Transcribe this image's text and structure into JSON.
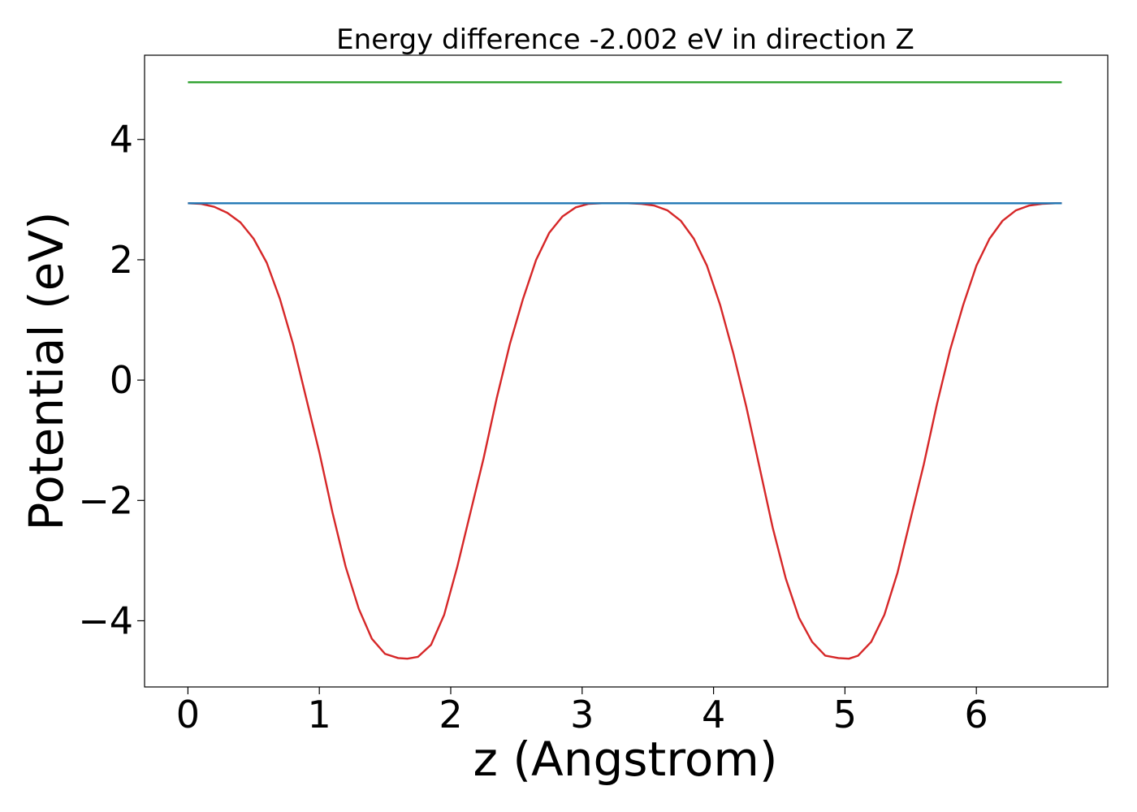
{
  "chart_data": {
    "type": "line",
    "title": "Energy difference -2.002 eV in direction Z",
    "xlabel": "z (Angstrom)",
    "ylabel": "Potential (eV)",
    "xlim": [
      -0.33,
      7.0
    ],
    "ylim": [
      -5.1,
      5.4
    ],
    "x_ticks": [
      0,
      1,
      2,
      3,
      4,
      5,
      6
    ],
    "y_ticks": [
      -4,
      -2,
      0,
      2,
      4
    ],
    "x_tick_labels": [
      "0",
      "1",
      "2",
      "3",
      "4",
      "5",
      "6"
    ],
    "y_tick_labels": [
      "−4",
      "−2",
      "0",
      "2",
      "4"
    ],
    "grid": false,
    "legend": "none",
    "series": [
      {
        "color": "#d62728",
        "x": [
          0.0,
          0.1,
          0.2,
          0.3,
          0.4,
          0.5,
          0.6,
          0.7,
          0.8,
          0.9,
          1.0,
          1.1,
          1.2,
          1.3,
          1.4,
          1.5,
          1.6,
          1.67,
          1.75,
          1.85,
          1.95,
          2.05,
          2.15,
          2.25,
          2.35,
          2.45,
          2.55,
          2.65,
          2.75,
          2.85,
          2.95,
          3.05,
          3.15,
          3.25,
          3.35,
          3.45,
          3.55,
          3.65,
          3.75,
          3.85,
          3.95,
          4.05,
          4.15,
          4.25,
          4.35,
          4.45,
          4.55,
          4.65,
          4.75,
          4.85,
          4.95,
          5.03,
          5.1,
          5.2,
          5.3,
          5.4,
          5.5,
          5.6,
          5.7,
          5.8,
          5.9,
          6.0,
          6.1,
          6.2,
          6.3,
          6.4,
          6.5,
          6.6,
          6.65
        ],
        "y": [
          2.94,
          2.93,
          2.88,
          2.78,
          2.62,
          2.35,
          1.95,
          1.35,
          0.6,
          -0.3,
          -1.2,
          -2.2,
          -3.1,
          -3.8,
          -4.3,
          -4.55,
          -4.62,
          -4.63,
          -4.6,
          -4.4,
          -3.9,
          -3.1,
          -2.2,
          -1.3,
          -0.3,
          0.6,
          1.35,
          2.0,
          2.45,
          2.72,
          2.87,
          2.93,
          2.94,
          2.94,
          2.94,
          2.93,
          2.9,
          2.82,
          2.65,
          2.35,
          1.9,
          1.25,
          0.45,
          -0.45,
          -1.45,
          -2.45,
          -3.3,
          -3.95,
          -4.35,
          -4.58,
          -4.62,
          -4.63,
          -4.58,
          -4.35,
          -3.9,
          -3.2,
          -2.3,
          -1.4,
          -0.4,
          0.5,
          1.25,
          1.9,
          2.35,
          2.65,
          2.82,
          2.9,
          2.93,
          2.94,
          2.94
        ]
      },
      {
        "color": "#1f77b4",
        "x": [
          0.0,
          6.65
        ],
        "y": [
          2.94,
          2.94
        ]
      },
      {
        "color": "#2ca02c",
        "x": [
          0.0,
          6.65
        ],
        "y": [
          4.95,
          4.95
        ]
      }
    ]
  }
}
